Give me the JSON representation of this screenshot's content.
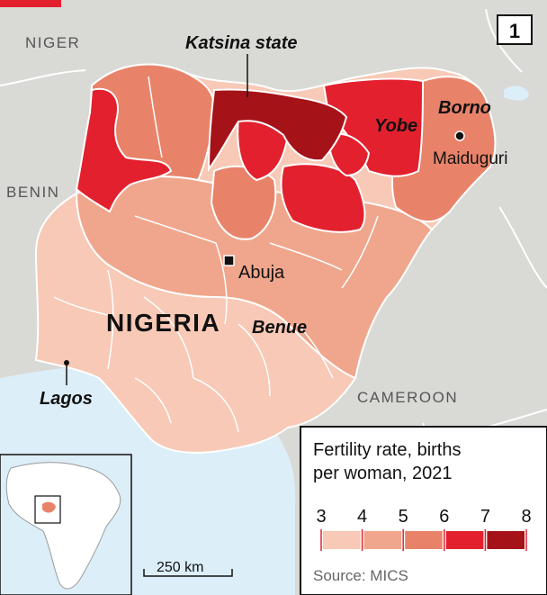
{
  "page_number": "1",
  "neighbours": {
    "niger": "NIGER",
    "benin": "BENIN",
    "cameroon": "CAMEROON"
  },
  "country": "NIGERIA",
  "places": {
    "katsina": "Katsina state",
    "yobe": "Yobe",
    "borno": "Borno",
    "maiduguri": "Maiduguri",
    "abuja": "Abuja",
    "benue": "Benue",
    "lagos": "Lagos"
  },
  "legend": {
    "title_line1": "Fertility rate, births",
    "title_line2": "per woman, 2021",
    "ticks": [
      "3",
      "4",
      "5",
      "6",
      "7",
      "8"
    ],
    "bins": [
      {
        "range": "3-4",
        "color": "#f7c9b6"
      },
      {
        "range": "4-5",
        "color": "#f0a68c"
      },
      {
        "range": "5-6",
        "color": "#e8836a"
      },
      {
        "range": "6-7",
        "color": "#e3202e"
      },
      {
        "range": "7-8",
        "color": "#a51218"
      }
    ],
    "source": "Source: MICS"
  },
  "scale_label": "250 km",
  "colors": {
    "land": "#d9d9d6",
    "sea": "#dceef8",
    "accent": "#e3202e"
  }
}
